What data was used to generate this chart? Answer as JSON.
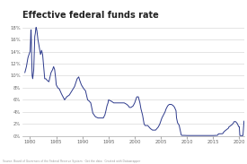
{
  "title": "Effective federal funds rate",
  "title_fontsize": 7,
  "line_color": "#2d3a8c",
  "background_color": "#ffffff",
  "grid_color": "#d0d0d0",
  "source_text": "Source: Board of Governors of the Federal Reserve System · Get the data · Created with Datawrapper",
  "xlim": [
    1978.5,
    2021
  ],
  "ylim": [
    0,
    19
  ],
  "yticks": [
    0,
    2,
    4,
    6,
    8,
    10,
    12,
    14,
    16,
    18
  ],
  "ytick_labels": [
    "0%",
    "2%",
    "4%",
    "6%",
    "8%",
    "10%",
    "12%",
    "14%",
    "16%",
    "18%"
  ],
  "xticks": [
    1980,
    1985,
    1990,
    1995,
    2000,
    2005,
    2010,
    2015,
    2020
  ],
  "data": [
    [
      1979.0,
      10.5
    ],
    [
      1979.3,
      11.5
    ],
    [
      1979.6,
      13.0
    ],
    [
      1979.9,
      13.8
    ],
    [
      1980.0,
      14.0
    ],
    [
      1980.1,
      16.0
    ],
    [
      1980.15,
      17.5
    ],
    [
      1980.2,
      17.6
    ],
    [
      1980.3,
      13.0
    ],
    [
      1980.4,
      10.0
    ],
    [
      1980.5,
      9.5
    ],
    [
      1980.7,
      11.0
    ],
    [
      1980.8,
      14.0
    ],
    [
      1980.9,
      16.5
    ],
    [
      1981.0,
      17.0
    ],
    [
      1981.1,
      17.8
    ],
    [
      1981.15,
      18.0
    ],
    [
      1981.3,
      17.5
    ],
    [
      1981.5,
      16.0
    ],
    [
      1981.7,
      15.0
    ],
    [
      1982.0,
      13.5
    ],
    [
      1982.2,
      14.2
    ],
    [
      1982.4,
      13.5
    ],
    [
      1982.6,
      11.5
    ],
    [
      1982.8,
      9.5
    ],
    [
      1983.0,
      9.5
    ],
    [
      1983.3,
      9.2
    ],
    [
      1983.6,
      9.0
    ],
    [
      1984.0,
      10.5
    ],
    [
      1984.3,
      11.0
    ],
    [
      1984.5,
      11.5
    ],
    [
      1984.7,
      11.0
    ],
    [
      1984.9,
      9.5
    ],
    [
      1985.0,
      8.5
    ],
    [
      1985.3,
      8.0
    ],
    [
      1985.6,
      7.8
    ],
    [
      1986.0,
      7.0
    ],
    [
      1986.3,
      6.5
    ],
    [
      1986.6,
      6.0
    ],
    [
      1987.0,
      6.5
    ],
    [
      1987.5,
      6.8
    ],
    [
      1988.0,
      7.5
    ],
    [
      1988.5,
      8.2
    ],
    [
      1989.0,
      9.5
    ],
    [
      1989.3,
      9.8
    ],
    [
      1989.5,
      9.2
    ],
    [
      1989.8,
      8.5
    ],
    [
      1990.0,
      8.2
    ],
    [
      1990.3,
      7.8
    ],
    [
      1990.6,
      7.5
    ],
    [
      1991.0,
      6.0
    ],
    [
      1991.3,
      5.8
    ],
    [
      1991.6,
      5.5
    ],
    [
      1992.0,
      3.8
    ],
    [
      1992.5,
      3.2
    ],
    [
      1993.0,
      3.0
    ],
    [
      1993.8,
      3.0
    ],
    [
      1994.0,
      3.0
    ],
    [
      1994.3,
      3.5
    ],
    [
      1994.5,
      4.2
    ],
    [
      1994.7,
      5.0
    ],
    [
      1994.9,
      5.5
    ],
    [
      1995.0,
      6.0
    ],
    [
      1995.5,
      5.8
    ],
    [
      1996.0,
      5.5
    ],
    [
      1997.0,
      5.5
    ],
    [
      1998.0,
      5.5
    ],
    [
      1998.5,
      5.25
    ],
    [
      1998.8,
      5.0
    ],
    [
      1999.0,
      4.75
    ],
    [
      1999.3,
      4.75
    ],
    [
      1999.7,
      5.0
    ],
    [
      2000.0,
      5.5
    ],
    [
      2000.2,
      6.0
    ],
    [
      2000.4,
      6.5
    ],
    [
      2000.7,
      6.5
    ],
    [
      2001.0,
      5.5
    ],
    [
      2001.2,
      4.5
    ],
    [
      2001.5,
      3.5
    ],
    [
      2001.8,
      2.0
    ],
    [
      2002.0,
      1.75
    ],
    [
      2002.5,
      1.75
    ],
    [
      2003.0,
      1.25
    ],
    [
      2003.4,
      1.0
    ],
    [
      2003.8,
      1.0
    ],
    [
      2004.0,
      1.0
    ],
    [
      2004.5,
      1.5
    ],
    [
      2004.8,
      2.0
    ],
    [
      2005.0,
      2.5
    ],
    [
      2005.2,
      3.0
    ],
    [
      2005.5,
      3.5
    ],
    [
      2005.8,
      4.0
    ],
    [
      2006.0,
      4.5
    ],
    [
      2006.3,
      5.0
    ],
    [
      2006.6,
      5.25
    ],
    [
      2007.0,
      5.25
    ],
    [
      2007.3,
      5.1
    ],
    [
      2007.6,
      4.8
    ],
    [
      2007.9,
      4.2
    ],
    [
      2008.0,
      3.0
    ],
    [
      2008.2,
      2.2
    ],
    [
      2008.5,
      1.8
    ],
    [
      2008.7,
      1.0
    ],
    [
      2008.9,
      0.2
    ],
    [
      2009.0,
      0.12
    ],
    [
      2009.5,
      0.12
    ],
    [
      2010.0,
      0.1
    ],
    [
      2011.0,
      0.1
    ],
    [
      2012.0,
      0.1
    ],
    [
      2013.0,
      0.1
    ],
    [
      2014.0,
      0.1
    ],
    [
      2015.0,
      0.1
    ],
    [
      2015.8,
      0.13
    ],
    [
      2015.95,
      0.25
    ],
    [
      2016.0,
      0.38
    ],
    [
      2016.8,
      0.4
    ],
    [
      2016.95,
      0.55
    ],
    [
      2017.0,
      0.66
    ],
    [
      2017.3,
      0.9
    ],
    [
      2017.6,
      1.1
    ],
    [
      2017.9,
      1.3
    ],
    [
      2018.0,
      1.5
    ],
    [
      2018.3,
      1.7
    ],
    [
      2018.6,
      1.9
    ],
    [
      2018.9,
      2.2
    ],
    [
      2019.0,
      2.4
    ],
    [
      2019.3,
      2.4
    ],
    [
      2019.6,
      2.1
    ],
    [
      2019.9,
      1.55
    ],
    [
      2020.0,
      1.55
    ],
    [
      2020.1,
      0.1
    ],
    [
      2020.5,
      0.08
    ],
    [
      2020.7,
      0.09
    ],
    [
      2020.9,
      2.5
    ]
  ]
}
